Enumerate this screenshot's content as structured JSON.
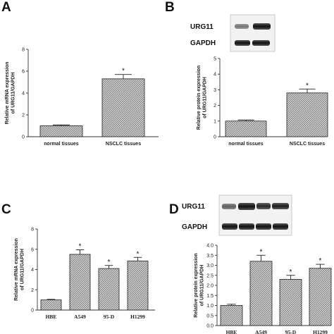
{
  "chart_data": [
    {
      "panel": "A",
      "type": "bar",
      "categories": [
        "normal tissues",
        "NSCLC tissues"
      ],
      "values": [
        1.0,
        5.3
      ],
      "errors": [
        0.08,
        0.4
      ],
      "significance": [
        "",
        "*"
      ],
      "ylabel": "Relative mRNA expression\nof URG11/GAPDH",
      "yticks": [
        0,
        2,
        4,
        6,
        8
      ],
      "ylim": [
        0,
        8
      ]
    },
    {
      "panel": "B",
      "type": "bar",
      "categories": [
        "normal tissues",
        "NSCLC tissues"
      ],
      "values": [
        1.0,
        2.8
      ],
      "errors": [
        0.07,
        0.25
      ],
      "significance": [
        "",
        "*"
      ],
      "ylabel": "Relative protein expression\nof URG11/GAPDH",
      "yticks": [
        0,
        1,
        2,
        3,
        4,
        5
      ],
      "ylim": [
        0,
        5
      ],
      "blot_labels": [
        "URG11",
        "GAPDH"
      ]
    },
    {
      "panel": "C",
      "type": "bar",
      "categories": [
        "HBE",
        "A549",
        "95-D",
        "H1299"
      ],
      "values": [
        1.0,
        5.5,
        4.1,
        4.85
      ],
      "errors": [
        0.06,
        0.45,
        0.3,
        0.35
      ],
      "significance": [
        "",
        "*",
        "*",
        "*"
      ],
      "ylabel": "Relative mRNA expression\nof URG11/GAPDH",
      "yticks": [
        0,
        2,
        4,
        6,
        8
      ],
      "ylim": [
        0,
        8
      ]
    },
    {
      "panel": "D",
      "type": "bar",
      "categories": [
        "HBE",
        "A549",
        "95-D",
        "H1299"
      ],
      "values": [
        1.0,
        3.2,
        2.3,
        2.85
      ],
      "errors": [
        0.06,
        0.3,
        0.2,
        0.2
      ],
      "significance": [
        "",
        "*",
        "*",
        "*"
      ],
      "ylabel": "Relative protein expression\nof URG11/GAPDH",
      "yticks": [
        0.0,
        0.5,
        1.0,
        1.5,
        2.0,
        2.5,
        3.0,
        3.5,
        4.0
      ],
      "ylim": [
        0,
        4
      ],
      "blot_labels": [
        "URG11",
        "GAPDH"
      ]
    }
  ],
  "panel_letters": [
    "A",
    "B",
    "C",
    "D"
  ]
}
